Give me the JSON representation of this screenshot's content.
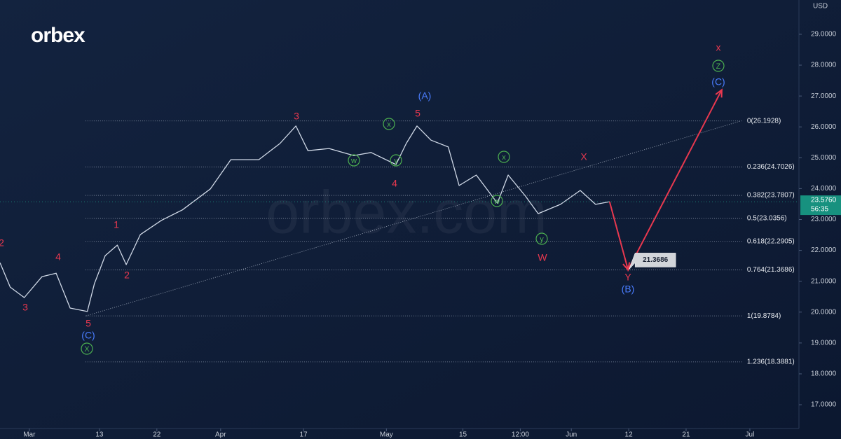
{
  "logo": "orbex",
  "watermark": "orbex.com",
  "chart_data": {
    "type": "line",
    "currency": "USD",
    "x": [
      -4.6,
      -3.0,
      -0.8,
      2.0,
      4.2,
      6.4,
      9.1,
      10.2,
      11.9,
      13.8,
      15.2,
      17.4,
      20.7,
      24.0,
      28.4,
      31.6,
      36.0,
      39.3,
      41.8,
      43.7,
      47.0,
      50.9,
      53.6,
      57.5,
      59.1,
      60.8,
      63.0,
      65.7,
      67.4,
      70.1,
      73.4,
      75.1,
      77.8,
      79.8,
      83.3,
      86.4,
      88.8,
      91.0
    ],
    "series": [
      {
        "color": "#cfd8e6",
        "values": [
          21.6,
          20.81,
          20.47,
          21.15,
          21.26,
          20.13,
          20.02,
          20.92,
          21.83,
          22.17,
          21.54,
          22.51,
          22.97,
          23.31,
          23.99,
          24.94,
          24.94,
          25.46,
          26.03,
          25.23,
          25.3,
          25.07,
          25.17,
          24.78,
          25.46,
          26.03,
          25.57,
          25.35,
          24.1,
          24.44,
          23.53,
          24.44,
          23.76,
          23.19,
          23.49,
          23.94,
          23.49,
          23.576
        ]
      }
    ],
    "xlim": [
      -4.6,
      120.7
    ],
    "ylim": [
      16.23,
      30.11
    ],
    "xticks": [
      {
        "value": 0,
        "label": "Mar"
      },
      {
        "value": 11,
        "label": "13"
      },
      {
        "value": 20,
        "label": "22"
      },
      {
        "value": 30,
        "label": "Apr"
      },
      {
        "value": 43,
        "label": "17"
      },
      {
        "value": 56,
        "label": "May"
      },
      {
        "value": 68,
        "label": "15"
      },
      {
        "value": 77,
        "label": "12:00"
      },
      {
        "value": 85,
        "label": "Jun"
      },
      {
        "value": 94,
        "label": "12"
      },
      {
        "value": 103,
        "label": "21"
      },
      {
        "value": 113,
        "label": "Jul"
      }
    ],
    "yticks": [
      {
        "value": 29,
        "label": "29.0000"
      },
      {
        "value": 28,
        "label": "28.0000"
      },
      {
        "value": 27,
        "label": "27.0000"
      },
      {
        "value": 26,
        "label": "26.0000"
      },
      {
        "value": 25,
        "label": "25.0000"
      },
      {
        "value": 24,
        "label": "24.0000"
      },
      {
        "value": 23,
        "label": "23.0000"
      },
      {
        "value": 22,
        "label": "22.0000"
      },
      {
        "value": 21,
        "label": "21.0000"
      },
      {
        "value": 20,
        "label": "20.0000"
      },
      {
        "value": 19,
        "label": "19.0000"
      },
      {
        "value": 18,
        "label": "18.0000"
      },
      {
        "value": 17,
        "label": "17.0000"
      }
    ],
    "last_price": {
      "value": 23.576,
      "label": "23.5760"
    },
    "countdown": "56:35",
    "fib_x": [
      8.8,
      111.9
    ],
    "fib_levels": [
      {
        "value": 26.1928,
        "label": "0(26.1928)"
      },
      {
        "value": 24.7026,
        "label": "0.236(24.7026)"
      },
      {
        "value": 23.7807,
        "label": "0.382(23.7807)"
      },
      {
        "value": 23.0356,
        "label": "0.5(23.0356)"
      },
      {
        "value": 22.2905,
        "label": "0.618(22.2905)"
      },
      {
        "value": 21.3686,
        "label": "0.764(21.3686)"
      },
      {
        "value": 19.8784,
        "label": "1(19.8784)"
      },
      {
        "value": 18.3881,
        "label": "1.236(18.3881)"
      }
    ],
    "trendline": {
      "x": [
        8.9,
        111.6
      ],
      "values": [
        19.8784,
        26.1928
      ]
    },
    "projection": {
      "color": "#e8384f",
      "x": [
        91.0,
        93.9,
        108.6
      ],
      "values": [
        23.576,
        21.3686,
        27.2
      ]
    },
    "target_label": 21.3686,
    "annotations": [
      {
        "text": "2",
        "color": "#e8384f",
        "circled": false
      },
      {
        "text": "4",
        "color": "#e8384f",
        "circled": false
      },
      {
        "text": "3",
        "color": "#e8384f",
        "circled": false
      },
      {
        "text": "5",
        "color": "#e8384f",
        "circled": false
      },
      {
        "text": "(C)",
        "color": "#4a7dff",
        "circled": false
      },
      {
        "text": "X",
        "color": "#4caf50",
        "circled": true
      },
      {
        "text": "1",
        "color": "#e8384f",
        "circled": false
      },
      {
        "text": "2",
        "color": "#e8384f",
        "circled": false
      },
      {
        "text": "3",
        "color": "#e8384f",
        "circled": false
      },
      {
        "text": "w",
        "color": "#4caf50",
        "circled": true
      },
      {
        "text": "y",
        "color": "#4caf50",
        "circled": true
      },
      {
        "text": "x",
        "color": "#4caf50",
        "circled": true
      },
      {
        "text": "(A)",
        "color": "#4a7dff",
        "circled": false
      },
      {
        "text": "5",
        "color": "#e8384f",
        "circled": false
      },
      {
        "text": "4",
        "color": "#e8384f",
        "circled": false
      },
      {
        "text": "x",
        "color": "#4caf50",
        "circled": true
      },
      {
        "text": "w",
        "color": "#4caf50",
        "circled": true
      },
      {
        "text": "y",
        "color": "#4caf50",
        "circled": true
      },
      {
        "text": "W",
        "color": "#e8384f",
        "circled": false
      },
      {
        "text": "X",
        "color": "#e8384f",
        "circled": false
      },
      {
        "text": "Y",
        "color": "#e8384f",
        "circled": false
      },
      {
        "text": "(B)",
        "color": "#4a7dff",
        "circled": false
      },
      {
        "text": "x",
        "color": "#e8384f",
        "circled": false
      },
      {
        "text": "Z",
        "color": "#4caf50",
        "circled": true
      },
      {
        "text": "(C)",
        "color": "#4a7dff",
        "circled": false
      }
    ]
  }
}
